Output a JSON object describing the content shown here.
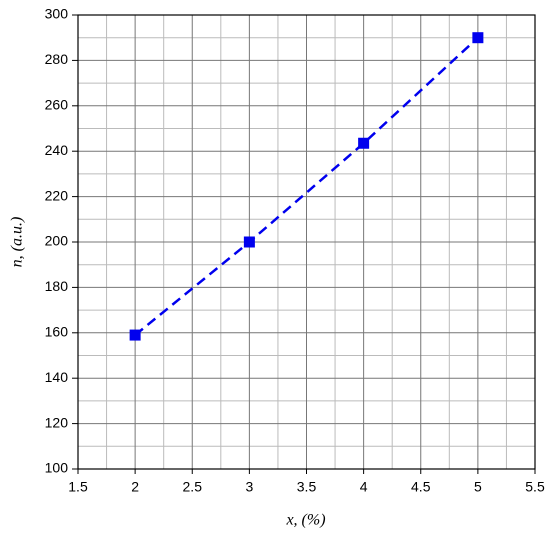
{
  "chart_data": {
    "type": "line",
    "x_label": "x, (%)",
    "y_label": "n, (a.u.)",
    "x": [
      2,
      3,
      4,
      5
    ],
    "series": [
      {
        "color": "#0000ee",
        "values": [
          159,
          200,
          243.5,
          290
        ]
      }
    ],
    "xlim": [
      1.5,
      5.5
    ],
    "xticks": [
      1.5,
      2,
      2.5,
      3,
      3.5,
      4,
      4.5,
      5,
      5.5
    ],
    "ylim": [
      100,
      300
    ],
    "yticks": [
      100,
      120,
      140,
      160,
      180,
      200,
      220,
      240,
      260,
      280,
      300
    ],
    "grid": true,
    "line_style": "dashed",
    "marker": "square"
  }
}
